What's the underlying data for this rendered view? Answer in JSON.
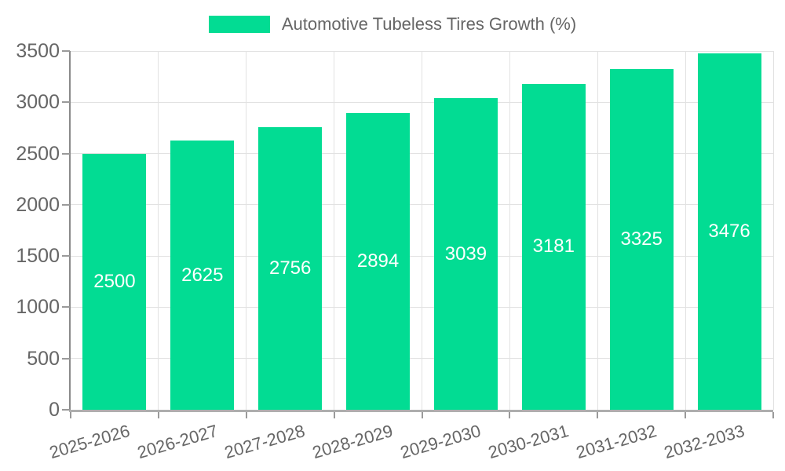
{
  "legend": {
    "label": "Automotive Tubeless Tires Growth (%)"
  },
  "chart_data": {
    "type": "bar",
    "title": "Automotive Tubeless Tires Growth (%)",
    "categories": [
      "2025-2026",
      "2026-2027",
      "2027-2028",
      "2028-2029",
      "2029-2030",
      "2030-2031",
      "2031-2032",
      "2032-2033"
    ],
    "values": [
      2500,
      2625,
      2756,
      2894,
      3039,
      3181,
      3325,
      3476
    ],
    "xlabel": "",
    "ylabel": "",
    "ylim": [
      0,
      3500
    ],
    "yticks": [
      0,
      500,
      1000,
      1500,
      2000,
      2500,
      3000,
      3500
    ],
    "grid": true,
    "legend_position": "top",
    "value_labels": "inside-center"
  },
  "colors": {
    "bar": "#02dc93",
    "value_label": "#ffffff",
    "axis_text": "#666666",
    "grid_line": "#e2e2e2",
    "y_axis_line": "#8a8a8a",
    "x_axis_line": "#aeaeae",
    "tick": "#9a9a9a",
    "background": "#ffffff"
  }
}
